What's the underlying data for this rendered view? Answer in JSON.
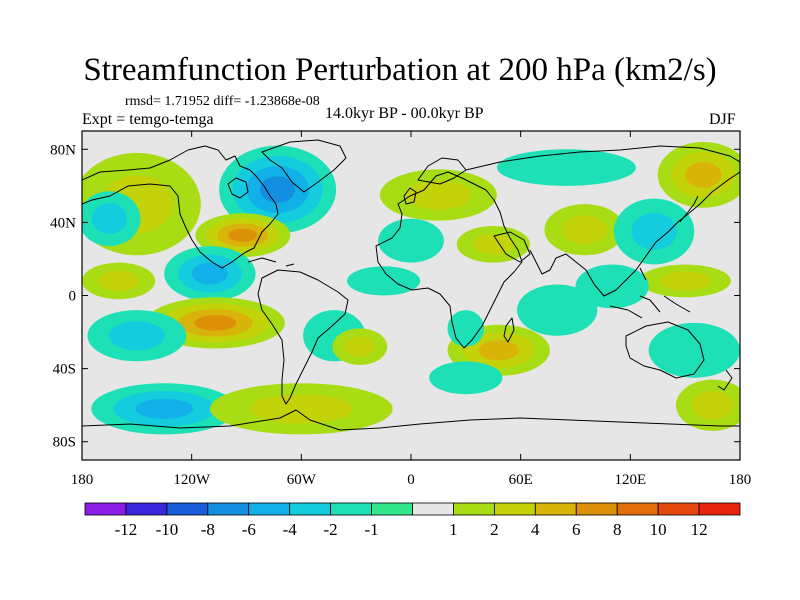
{
  "title": "Streamfunction Perturbation at 200 hPa (km2/s)",
  "stats": "rmsd= 1.71952 diff= -1.23868e-08",
  "expt": "Expt = temgo-temga",
  "period": "14.0kyr BP - 00.0kyr BP",
  "season": "DJF",
  "map": {
    "lon_range": [
      -180,
      180
    ],
    "lat_range": [
      -90,
      90
    ],
    "background_color": "#e6e6e6",
    "lat_ticks": [
      {
        "value": 80,
        "label": "80N"
      },
      {
        "value": 40,
        "label": "40N"
      },
      {
        "value": 0,
        "label": "0"
      },
      {
        "value": -40,
        "label": "40S"
      },
      {
        "value": -80,
        "label": "80S"
      }
    ],
    "lon_ticks": [
      {
        "value": -180,
        "label": "180"
      },
      {
        "value": -120,
        "label": "120W"
      },
      {
        "value": -60,
        "label": "60W"
      },
      {
        "value": 0,
        "label": "0"
      },
      {
        "value": 60,
        "label": "60E"
      },
      {
        "value": 120,
        "label": "120E"
      },
      {
        "value": 180,
        "label": "180"
      }
    ],
    "anomalies": [
      {
        "lon": -73,
        "lat": 58,
        "rx": 32,
        "ry": 24,
        "level": -6
      },
      {
        "lon": -150,
        "lat": 50,
        "rx": 35,
        "ry": 28,
        "level": 2
      },
      {
        "lon": -165,
        "lat": 42,
        "rx": 17,
        "ry": 15,
        "level": -2
      },
      {
        "lon": -92,
        "lat": 33,
        "rx": 26,
        "ry": 12,
        "level": 6
      },
      {
        "lon": -110,
        "lat": 12,
        "rx": 25,
        "ry": 15,
        "level": -4
      },
      {
        "lon": -160,
        "lat": 8,
        "rx": 20,
        "ry": 10,
        "level": 2
      },
      {
        "lon": -107,
        "lat": -15,
        "rx": 38,
        "ry": 14,
        "level": 6
      },
      {
        "lon": -150,
        "lat": -22,
        "rx": 27,
        "ry": 14,
        "level": -3
      },
      {
        "lon": -42,
        "lat": -22,
        "rx": 17,
        "ry": 14,
        "level": -1
      },
      {
        "lon": -135,
        "lat": -62,
        "rx": 40,
        "ry": 14,
        "level": -4
      },
      {
        "lon": -60,
        "lat": -62,
        "rx": 50,
        "ry": 14,
        "level": 2
      },
      {
        "lon": -15,
        "lat": 8,
        "rx": 20,
        "ry": 8,
        "level": -1
      },
      {
        "lon": -28,
        "lat": -28,
        "rx": 15,
        "ry": 10,
        "level": 2
      },
      {
        "lon": 15,
        "lat": 55,
        "rx": 32,
        "ry": 14,
        "level": 2
      },
      {
        "lon": 85,
        "lat": 70,
        "rx": 38,
        "ry": 10,
        "level": -1
      },
      {
        "lon": 0,
        "lat": 30,
        "rx": 18,
        "ry": 12,
        "level": -1
      },
      {
        "lon": 45,
        "lat": 28,
        "rx": 20,
        "ry": 10,
        "level": 2
      },
      {
        "lon": 95,
        "lat": 36,
        "rx": 22,
        "ry": 14,
        "level": 2
      },
      {
        "lon": 133,
        "lat": 35,
        "rx": 22,
        "ry": 18,
        "level": -3
      },
      {
        "lon": 160,
        "lat": 66,
        "rx": 25,
        "ry": 18,
        "level": 4
      },
      {
        "lon": 150,
        "lat": 8,
        "rx": 25,
        "ry": 9,
        "level": 2
      },
      {
        "lon": 110,
        "lat": 5,
        "rx": 20,
        "ry": 12,
        "level": -1
      },
      {
        "lon": 80,
        "lat": -8,
        "rx": 22,
        "ry": 14,
        "level": -1
      },
      {
        "lon": 48,
        "lat": -30,
        "rx": 28,
        "ry": 14,
        "level": 4
      },
      {
        "lon": 30,
        "lat": -45,
        "rx": 20,
        "ry": 9,
        "level": -1
      },
      {
        "lon": 155,
        "lat": -30,
        "rx": 25,
        "ry": 15,
        "level": -1
      },
      {
        "lon": 165,
        "lat": -60,
        "rx": 20,
        "ry": 14,
        "level": 2
      },
      {
        "lon": 30,
        "lat": -18,
        "rx": 10,
        "ry": 10,
        "level": -1
      }
    ]
  },
  "colorbar": {
    "colors": [
      "#8a1ee6",
      "#3c28dc",
      "#1a5cd8",
      "#148ee0",
      "#12b0e8",
      "#14ccde",
      "#1ee0b6",
      "#32e68c",
      "#e6e6e6",
      "#a8dc14",
      "#c4d20a",
      "#d8b40a",
      "#dc9008",
      "#e06e0a",
      "#e4480e",
      "#e82410"
    ],
    "labels": [
      "-12",
      "-10",
      "-8",
      "-6",
      "-4",
      "-2",
      "-1",
      "1",
      "2",
      "4",
      "6",
      "8",
      "10",
      "12"
    ]
  }
}
